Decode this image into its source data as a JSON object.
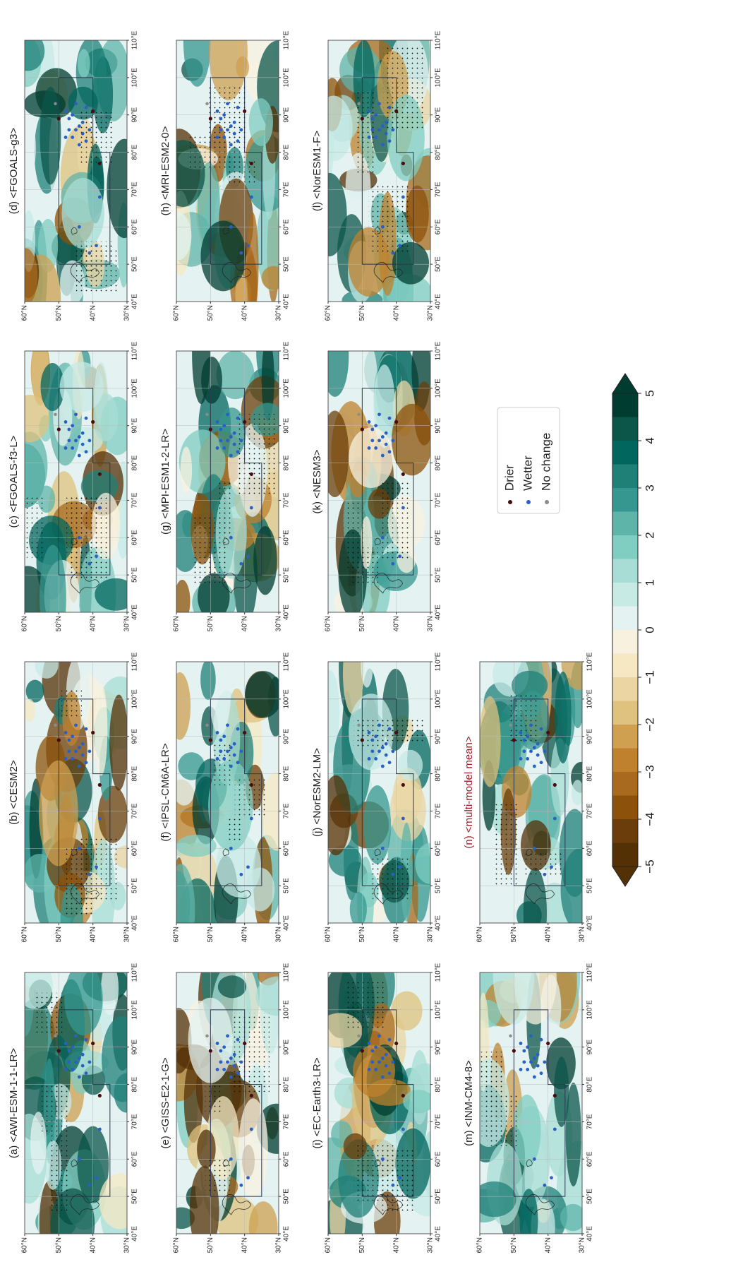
{
  "panels": [
    {
      "title": "(a) <AWI-ESM-1-1-LR>"
    },
    {
      "title": "(b) <CESM2>"
    },
    {
      "title": "(c) <FGOALS-f3-L>"
    },
    {
      "title": "(d) <FGOALS-g3>"
    },
    {
      "title": "(e) <GISS-E2-1-G>"
    },
    {
      "title": "(f) <IPSL-CM6A-LR>"
    },
    {
      "title": "(g) <MPI-ESM1-2-LR>"
    },
    {
      "title": "(h) <MRI-ESM2-0>"
    },
    {
      "title": "(i) <EC-Earth3-LR>"
    },
    {
      "title": "(j) <NorESM2-LM>"
    },
    {
      "title": "(k) <NESM3>"
    },
    {
      "title": "(l) <NorESM1-F>"
    },
    {
      "title": "(m) <INM-CM4-8>"
    },
    {
      "title": "(n) <multi-model mean>",
      "color": "#a01c2a"
    }
  ],
  "map_axes": {
    "xlim": [
      40,
      110
    ],
    "ylim": [
      30,
      60
    ],
    "xticks": [
      {
        "value": 40,
        "label": "40°E"
      },
      {
        "value": 50,
        "label": "50°E"
      },
      {
        "value": 60,
        "label": "60°E"
      },
      {
        "value": 70,
        "label": "70°E"
      },
      {
        "value": 80,
        "label": "80°E"
      },
      {
        "value": 90,
        "label": "90°E"
      },
      {
        "value": 100,
        "label": "100°E"
      },
      {
        "value": 110,
        "label": "110°E"
      }
    ],
    "yticks": [
      {
        "value": 60,
        "label": "60°N"
      },
      {
        "value": 50,
        "label": "50°N"
      },
      {
        "value": 40,
        "label": "40°N"
      },
      {
        "value": 30,
        "label": "30°N"
      }
    ]
  },
  "legend": {
    "items": [
      {
        "label": "Drier",
        "color": "#4a0a10"
      },
      {
        "label": "Wetter",
        "color": "#2a5fc4"
      },
      {
        "label": "No change",
        "color": "#8c8c8c"
      }
    ]
  },
  "colorbar": {
    "lim": [
      -5,
      5
    ],
    "ticks": [
      {
        "value": -5,
        "label": "−5"
      },
      {
        "value": -4,
        "label": "−4"
      },
      {
        "value": -3,
        "label": "−3"
      },
      {
        "value": -2,
        "label": "−2"
      },
      {
        "value": -1,
        "label": "−1"
      },
      0,
      1,
      2,
      3,
      4,
      5
    ],
    "colors": [
      "#543005",
      "#6b3d0a",
      "#8c510a",
      "#a86a1e",
      "#bf812d",
      "#cfa050",
      "#dfc27d",
      "#ebd6a3",
      "#f6e8c3",
      "#f8f1e0",
      "#e4f3f1",
      "#c7eae5",
      "#a8ddd5",
      "#80cdc1",
      "#5fb4aa",
      "#35978f",
      "#1f8078",
      "#01665e",
      "#0b5549",
      "#003c30"
    ]
  }
}
